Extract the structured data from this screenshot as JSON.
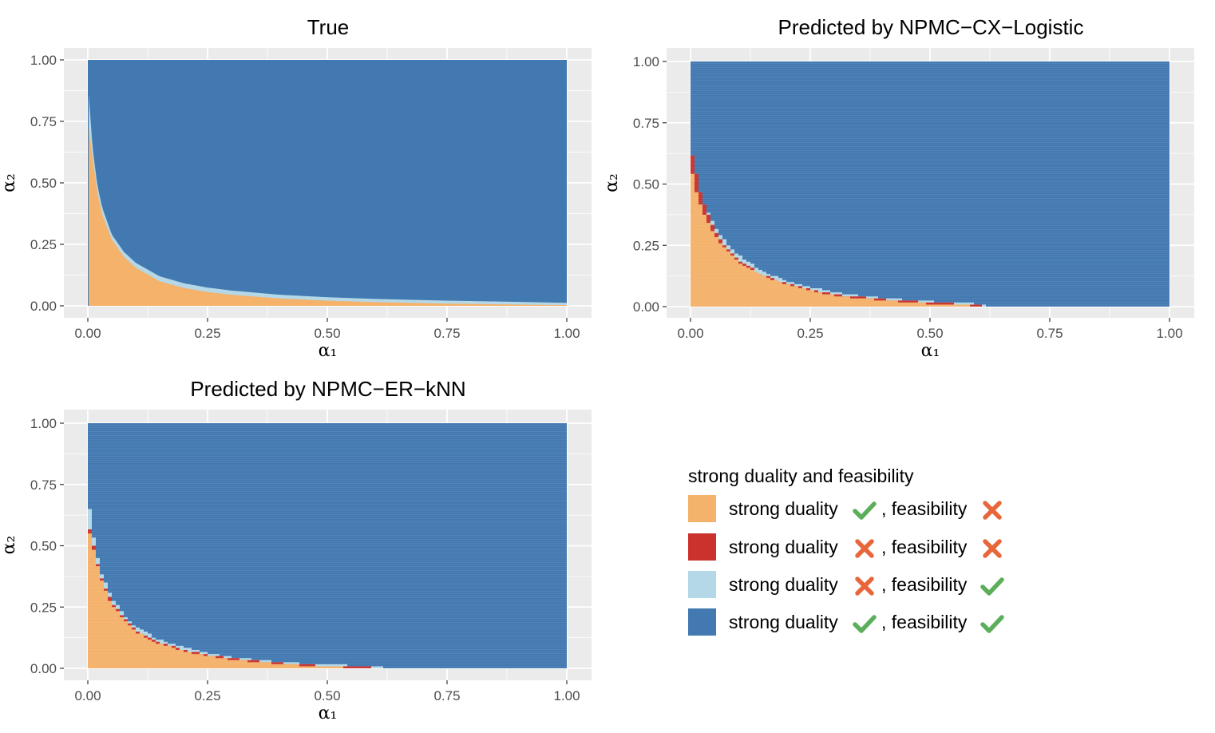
{
  "chart_data": [
    {
      "type": "heatmap",
      "title": "True",
      "xlabel": "α₁",
      "ylabel": "α₂",
      "xlim": [
        0,
        1
      ],
      "ylim": [
        0,
        1
      ],
      "xticks": [
        "0.00",
        "0.25",
        "0.50",
        "0.75",
        "1.00"
      ],
      "yticks": [
        "0.00",
        "0.25",
        "0.50",
        "0.75",
        "1.00"
      ],
      "grid": true,
      "region_boundary": {
        "x": [
          0.002,
          0.01,
          0.02,
          0.03,
          0.05,
          0.075,
          0.1,
          0.15,
          0.2,
          0.25,
          0.3,
          0.4,
          0.5,
          0.6,
          0.75,
          0.9,
          1.0
        ],
        "orange_upper_y": [
          0.73,
          0.6,
          0.46,
          0.37,
          0.27,
          0.2,
          0.155,
          0.1,
          0.073,
          0.056,
          0.045,
          0.03,
          0.021,
          0.015,
          0.009,
          0.005,
          0.003
        ],
        "lightblue_upper_y": [
          0.86,
          0.64,
          0.49,
          0.4,
          0.29,
          0.22,
          0.175,
          0.12,
          0.092,
          0.074,
          0.062,
          0.045,
          0.035,
          0.028,
          0.021,
          0.016,
          0.012
        ]
      }
    },
    {
      "type": "heatmap",
      "title": "Predicted by NPMC−CX−Logistic",
      "xlabel": "α₁",
      "ylabel": "α₂",
      "xlim": [
        0,
        1
      ],
      "ylim": [
        0,
        1
      ],
      "xticks": [
        "0.00",
        "0.25",
        "0.50",
        "0.75",
        "1.00"
      ],
      "yticks": [
        "0.00",
        "0.25",
        "0.50",
        "0.75",
        "1.00"
      ],
      "grid": true,
      "region_boundary": {
        "x": [
          0.005,
          0.01,
          0.02,
          0.03,
          0.05,
          0.075,
          0.1,
          0.15,
          0.2,
          0.25,
          0.3,
          0.35,
          0.4,
          0.45,
          0.5,
          0.55,
          0.6,
          0.62
        ],
        "orange_upper_y": [
          0.54,
          0.48,
          0.42,
          0.37,
          0.29,
          0.23,
          0.18,
          0.125,
          0.09,
          0.065,
          0.045,
          0.035,
          0.025,
          0.018,
          0.012,
          0.006,
          0.003,
          0.0
        ],
        "red_upper_y": [
          0.62,
          0.56,
          0.47,
          0.41,
          0.31,
          0.24,
          0.19,
          0.13,
          0.095,
          0.07,
          0.05,
          0.04,
          0.03,
          0.024,
          0.018,
          0.012,
          0.01,
          0.0
        ],
        "lightblue_upper_y": [
          0.62,
          0.56,
          0.47,
          0.41,
          0.33,
          0.26,
          0.21,
          0.145,
          0.105,
          0.08,
          0.058,
          0.046,
          0.036,
          0.028,
          0.022,
          0.016,
          0.012,
          0.012
        ]
      }
    },
    {
      "type": "heatmap",
      "title": "Predicted by NPMC−ER−kNN",
      "xlabel": "α₁",
      "ylabel": "α₂",
      "xlim": [
        0,
        1
      ],
      "ylim": [
        0,
        1
      ],
      "xticks": [
        "0.00",
        "0.25",
        "0.50",
        "0.75",
        "1.00"
      ],
      "yticks": [
        "0.00",
        "0.25",
        "0.50",
        "0.75",
        "1.00"
      ],
      "grid": true,
      "region_boundary": {
        "x": [
          0.005,
          0.01,
          0.02,
          0.03,
          0.05,
          0.075,
          0.1,
          0.15,
          0.2,
          0.25,
          0.3,
          0.35,
          0.4,
          0.45,
          0.5,
          0.55,
          0.6,
          0.62
        ],
        "orange_upper_y": [
          0.55,
          0.5,
          0.42,
          0.35,
          0.26,
          0.2,
          0.15,
          0.1,
          0.07,
          0.05,
          0.035,
          0.025,
          0.018,
          0.012,
          0.007,
          0.003,
          0.001,
          0.0
        ],
        "red_upper_y": [
          0.57,
          0.52,
          0.43,
          0.36,
          0.27,
          0.205,
          0.155,
          0.105,
          0.075,
          0.055,
          0.04,
          0.03,
          0.022,
          0.016,
          0.01,
          0.01,
          0.003,
          0.0
        ],
        "lightblue_upper_y": [
          0.65,
          0.56,
          0.46,
          0.38,
          0.29,
          0.22,
          0.17,
          0.115,
          0.085,
          0.062,
          0.046,
          0.035,
          0.027,
          0.02,
          0.015,
          0.012,
          0.012,
          0.012
        ]
      }
    }
  ],
  "legend": {
    "title": "strong duality and feasibility",
    "label_strong": "strong duality",
    "label_feas": ", feasibility",
    "items": [
      {
        "color": "#F4B26B",
        "strong": "check",
        "feas": "cross"
      },
      {
        "color": "#CB322E",
        "strong": "cross",
        "feas": "cross"
      },
      {
        "color": "#B4D8E7",
        "strong": "cross",
        "feas": "check"
      },
      {
        "color": "#4379B1",
        "strong": "check",
        "feas": "check"
      }
    ]
  },
  "colors": {
    "panel_bg": "#EBEBEB",
    "grid": "#FFFFFF",
    "orange": "#F4B26B",
    "red": "#CB322E",
    "lightblue": "#B4D8E7",
    "blue": "#4379B1",
    "check": "#5DAE5A",
    "cross": "#E8673A"
  }
}
